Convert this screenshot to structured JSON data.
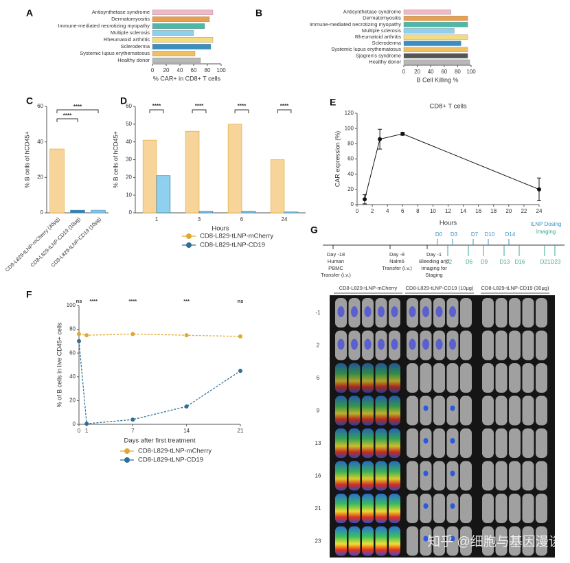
{
  "chart_data": [
    {
      "type": "hbar",
      "panel": "A",
      "x_label": "% CAR+ in CD8+ T cells",
      "categories": [
        "Antisynthetase syndrome",
        "Dermatomyositis",
        "Immune-mediated necrotizing myopathy",
        "Multiple sclerosis",
        "Rheumatoid arthritis",
        "Scleroderma",
        "Systemic lupus erythematosus",
        "Healthy donor"
      ],
      "values": [
        88,
        83,
        76,
        60,
        88,
        85,
        62,
        70
      ],
      "colors": [
        "#f2b8c6",
        "#e8a050",
        "#4cb8a8",
        "#8fd0ee",
        "#f3dc80",
        "#3a8fc0",
        "#f0c060",
        "#b8b8b8"
      ],
      "xlim": [
        0,
        100
      ],
      "xticks": [
        0,
        20,
        40,
        60,
        80,
        100
      ]
    },
    {
      "type": "hbar",
      "panel": "B",
      "x_label": "B Cell Killing %",
      "categories": [
        "Antisynthetase syndrome",
        "Dermatomyositis",
        "Immune-mediated necrotizing myopathy",
        "Multiple sclerosis",
        "Rheumatoid arthritis",
        "Scleroderma",
        "Systemic lupus erythematosus",
        "Sjogren's syndrome",
        "Healthy donor"
      ],
      "values": [
        70,
        95,
        95,
        75,
        95,
        85,
        95,
        95,
        98
      ],
      "colors": [
        "#f2b8c6",
        "#e8a050",
        "#4cb8a8",
        "#8fd0ee",
        "#f3dc80",
        "#3a8fc0",
        "#f0c060",
        "#555555",
        "#b8b8b8"
      ],
      "xlim": [
        0,
        100
      ],
      "xticks": [
        0,
        20,
        40,
        60,
        80,
        100
      ]
    },
    {
      "type": "bar",
      "panel": "C",
      "y_label": "% B cells of hCD45+",
      "categories": [
        "CD8-L829-tLNP-mCherry (30μg)",
        "CD8-L829-tLNP-CD19 (10μg)",
        "CD8-L829-tLNP-CD19 (10μg)"
      ],
      "values": [
        36,
        1.5,
        1.5
      ],
      "colors": [
        "#f6d49a",
        "#3a7fa8",
        "#8fc4e0"
      ],
      "ylim": [
        0,
        60
      ],
      "yticks": [
        0,
        20,
        40,
        60
      ],
      "annotations": [
        "****",
        "****"
      ]
    },
    {
      "type": "grouped_bar",
      "panel": "D",
      "y_label": "% B cells of hCD45+",
      "x_label": "Hours",
      "categories": [
        "1",
        "3",
        "6",
        "24"
      ],
      "series": [
        {
          "name": "CD8-L829-tLNP-mCherry",
          "color": "#f6d49a",
          "dot": "#e0a830",
          "values": [
            41,
            46,
            50,
            30
          ]
        },
        {
          "name": "CD8-L829-tLNP-CD19",
          "color": "#8fd0ee",
          "dot": "#2f6f95",
          "values": [
            21,
            1,
            1,
            0.5
          ]
        }
      ],
      "ylim": [
        0,
        60
      ],
      "yticks": [
        0,
        10,
        20,
        30,
        40,
        50,
        60
      ],
      "annotations": [
        "****",
        "****",
        "****",
        "****"
      ]
    },
    {
      "type": "line",
      "panel": "E",
      "title": "CD8+ T cells",
      "y_label": "CAR expression (%)",
      "x_label": "Hours",
      "x": [
        1,
        3,
        6,
        24
      ],
      "values": [
        7,
        86,
        93,
        20
      ],
      "errors": [
        6,
        13,
        2,
        15
      ],
      "color": "#111111",
      "xlim": [
        0,
        24
      ],
      "xticks": [
        0,
        2,
        4,
        6,
        8,
        10,
        12,
        14,
        16,
        18,
        20,
        22,
        24
      ],
      "ylim": [
        0,
        120
      ],
      "yticks": [
        0,
        20,
        40,
        60,
        80,
        100,
        120
      ]
    },
    {
      "type": "multi_line",
      "panel": "F",
      "y_label": "% of B cells in live CD45+ cells",
      "x_label": "Days after first treatment",
      "x": [
        0,
        1,
        7,
        14,
        21
      ],
      "series": [
        {
          "name": "CD8-L829-tLNP-mCherry",
          "color": "#e0a830",
          "values": [
            76,
            75,
            76,
            75,
            74
          ]
        },
        {
          "name": "CD8-L829-tLNP-CD19",
          "color": "#2f6f95",
          "values": [
            70,
            0.5,
            4,
            15,
            45
          ]
        }
      ],
      "xlim": [
        0,
        21
      ],
      "xticks": [
        0,
        1,
        7,
        14,
        21
      ],
      "ylim": [
        0,
        100
      ],
      "yticks": [
        0,
        20,
        40,
        60,
        80,
        100
      ],
      "annotations": [
        "ns",
        "****",
        "****",
        "***",
        "ns"
      ]
    }
  ],
  "panel_g": {
    "label": "G",
    "events": [
      [
        "Day -18",
        "Human",
        "PBMC",
        "Transfer (i.v.)"
      ],
      [
        "Day -8",
        "Nalm6",
        "Transfer (i.v.)"
      ],
      [
        "Day -1",
        "Bleeding and",
        "Imaging for",
        "Staging"
      ]
    ],
    "dosing_days": [
      "D0",
      "D3",
      "D7",
      "D10",
      "D14"
    ],
    "imaging_days": [
      "D2",
      "D6",
      "D9",
      "D13",
      "D16",
      "D21",
      "D23"
    ],
    "legend": [
      "tLNP Dosing",
      "Imaging"
    ],
    "groups": [
      "CD8-L829-tLNP-mCherry",
      "CD8-L829-tLNP-CD19 (10μg)",
      "CD8-L829-tLNP-CD19 (30μg)"
    ],
    "rows": [
      "-1",
      "2",
      "6",
      "9",
      "13",
      "16",
      "21",
      "23"
    ],
    "watermark": "知乎 @细胞与基因漫谈"
  }
}
